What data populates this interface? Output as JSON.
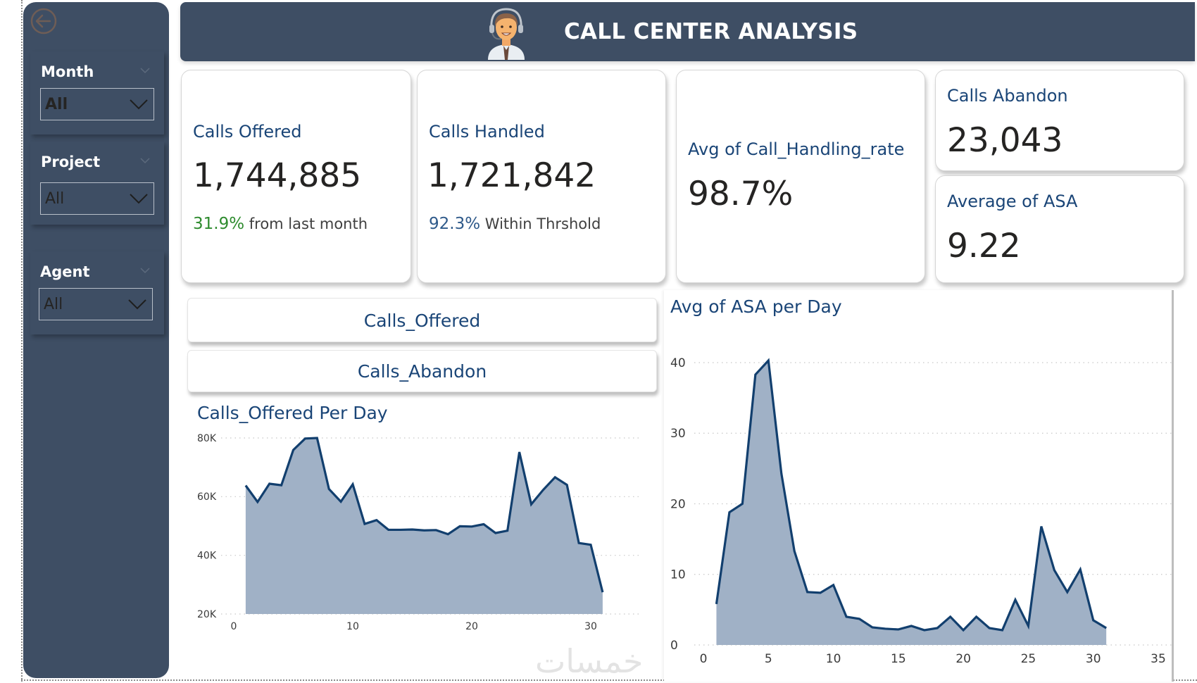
{
  "header": {
    "title": "CALL CENTER ANALYSIS",
    "avatar_icon": "call-center-agent-icon"
  },
  "sidebar": {
    "back_icon": "arrow-left-circle-icon",
    "slicers": [
      {
        "label": "Month",
        "value": "All"
      },
      {
        "label": "Project",
        "value": "All"
      },
      {
        "label": "Agent",
        "value": "All"
      }
    ]
  },
  "kpis": {
    "calls_offered": {
      "title": "Calls Offered",
      "value": "1,744,885",
      "delta": "31.9%",
      "delta_text": "from last month",
      "delta_color": "#2e8b2e"
    },
    "calls_handled": {
      "title": "Calls Handled",
      "value": "1,721,842",
      "delta": "92.3%",
      "delta_text": "Within Thrshold",
      "delta_color": "#2f5a8a"
    },
    "handling_rate": {
      "title": "Avg of Call_Handling_rate",
      "value": "98.7%"
    },
    "calls_abandon": {
      "title": "Calls Abandon",
      "value": "23,043"
    },
    "avg_asa": {
      "title": "Average of ASA",
      "value": "9.22"
    }
  },
  "toggles": [
    {
      "label": "Calls_Offered"
    },
    {
      "label": "Calls_Abandon"
    }
  ],
  "watermark": "خمسات",
  "colors": {
    "navy": "#3e4e64",
    "accent_text": "#1a4577",
    "line": "#123f6e",
    "area": "#a0b1c6"
  },
  "chart_data": [
    {
      "type": "area",
      "title": "Calls_Offered Per Day",
      "xlabel": "",
      "ylabel": "",
      "x": [
        1,
        2,
        3,
        4,
        5,
        6,
        7,
        8,
        9,
        10,
        11,
        12,
        13,
        14,
        15,
        16,
        17,
        18,
        19,
        20,
        21,
        22,
        23,
        24,
        25,
        26,
        27,
        28,
        29,
        30,
        31
      ],
      "values": [
        63800,
        58200,
        64400,
        63900,
        75900,
        79800,
        80000,
        62600,
        58300,
        64200,
        50700,
        52000,
        48700,
        48700,
        48800,
        48500,
        48600,
        47200,
        49900,
        49800,
        50600,
        47600,
        48400,
        75200,
        57400,
        62300,
        66600,
        64000,
        44200,
        43600,
        27400
      ],
      "xlim": [
        0,
        33
      ],
      "ylim": [
        20000,
        80000
      ],
      "xticks": [
        0,
        10,
        20,
        30
      ],
      "xtick_labels": [
        "0",
        "10",
        "20",
        "30"
      ],
      "yticks": [
        20000,
        40000,
        60000,
        80000
      ],
      "ytick_labels": [
        "20K",
        "40K",
        "60K",
        "80K"
      ],
      "grid": true
    },
    {
      "type": "area",
      "title": "Avg of ASA per Day",
      "xlabel": "",
      "ylabel": "",
      "x": [
        1,
        2,
        3,
        4,
        5,
        6,
        7,
        8,
        9,
        10,
        11,
        12,
        13,
        14,
        15,
        16,
        17,
        18,
        19,
        20,
        21,
        22,
        23,
        24,
        25,
        26,
        27,
        28,
        29,
        30,
        31
      ],
      "values": [
        5.8,
        18.8,
        20.0,
        38.3,
        40.3,
        24.3,
        13.3,
        7.5,
        7.4,
        8.5,
        4.0,
        3.7,
        2.5,
        2.3,
        2.2,
        2.7,
        2.1,
        2.4,
        4.0,
        2.1,
        4.0,
        2.4,
        2.1,
        6.4,
        2.7,
        16.8,
        10.6,
        7.5,
        10.7,
        3.5,
        2.4
      ],
      "xlim": [
        0,
        35
      ],
      "ylim": [
        0,
        40
      ],
      "xticks": [
        0,
        5,
        10,
        15,
        20,
        25,
        30,
        35
      ],
      "xtick_labels": [
        "0",
        "5",
        "10",
        "15",
        "20",
        "25",
        "30",
        "35"
      ],
      "yticks": [
        0,
        10,
        20,
        30,
        40
      ],
      "ytick_labels": [
        "0",
        "10",
        "20",
        "30",
        "40"
      ],
      "grid": true
    }
  ]
}
